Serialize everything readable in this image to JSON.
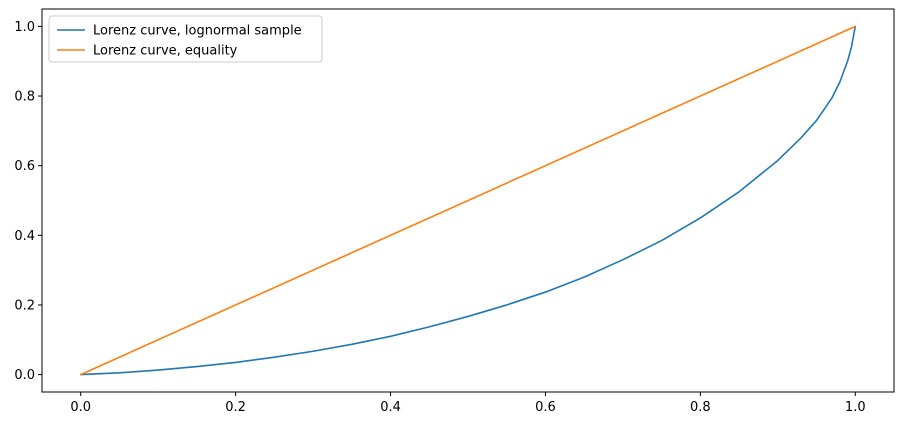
{
  "chart_data": {
    "type": "line",
    "title": "",
    "xlabel": "",
    "ylabel": "",
    "xlim": [
      -0.05,
      1.05
    ],
    "ylim": [
      -0.05,
      1.05
    ],
    "xticks": [
      0.0,
      0.2,
      0.4,
      0.6,
      0.8,
      1.0
    ],
    "yticks": [
      0.0,
      0.2,
      0.4,
      0.6,
      0.8,
      1.0
    ],
    "xtick_labels": [
      "0.0",
      "0.2",
      "0.4",
      "0.6",
      "0.8",
      "1.0"
    ],
    "ytick_labels": [
      "0.0",
      "0.2",
      "0.4",
      "0.6",
      "0.8",
      "1.0"
    ],
    "grid": false,
    "legend_position": "top-left",
    "series": [
      {
        "name": "Lorenz curve, lognormal sample",
        "color": "#1f77b4",
        "x": [
          0.0,
          0.05,
          0.1,
          0.15,
          0.2,
          0.25,
          0.3,
          0.35,
          0.4,
          0.45,
          0.5,
          0.55,
          0.6,
          0.65,
          0.7,
          0.75,
          0.8,
          0.85,
          0.9,
          0.93,
          0.95,
          0.97,
          0.98,
          0.99,
          0.995,
          1.0
        ],
        "y": [
          0.0,
          0.005,
          0.013,
          0.023,
          0.035,
          0.05,
          0.067,
          0.087,
          0.11,
          0.137,
          0.167,
          0.2,
          0.237,
          0.28,
          0.33,
          0.385,
          0.45,
          0.525,
          0.615,
          0.68,
          0.73,
          0.795,
          0.84,
          0.9,
          0.94,
          1.0
        ]
      },
      {
        "name": "Lorenz curve, equality",
        "color": "#ff7f0e",
        "x": [
          0.0,
          1.0
        ],
        "y": [
          0.0,
          1.0
        ]
      }
    ]
  }
}
